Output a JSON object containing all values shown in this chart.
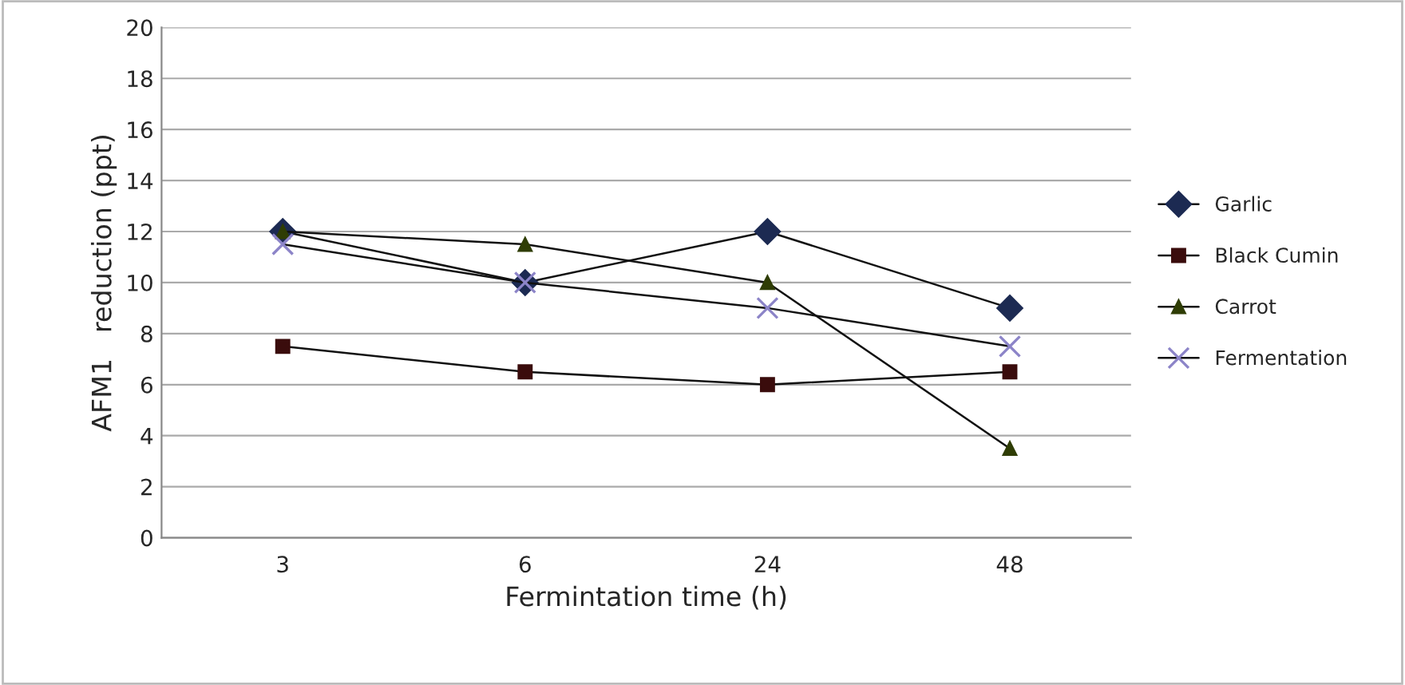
{
  "chart_data": {
    "type": "line",
    "xlabel": "Fermintation time (h)",
    "ylabel": "AFM1   reduction (ppt)",
    "categories": [
      "3",
      "6",
      "24",
      "48"
    ],
    "series": [
      {
        "name": "Garlic",
        "color": "#1c2a52",
        "marker": "diamond",
        "values": [
          12,
          10,
          12,
          9
        ]
      },
      {
        "name": "Black Cumin",
        "color": "#3a0c0c",
        "marker": "square",
        "values": [
          7.5,
          6.5,
          6,
          6.5
        ]
      },
      {
        "name": "Carrot",
        "color": "#2f3d05",
        "marker": "triangle",
        "values": [
          12,
          11.5,
          10,
          3.5
        ]
      },
      {
        "name": "Fermentation",
        "color": "#8c84c8",
        "marker": "cross",
        "values": [
          11.5,
          10,
          9,
          7.5
        ]
      }
    ],
    "ylim": [
      0,
      20
    ],
    "yticks": [
      0,
      2,
      4,
      6,
      8,
      10,
      12,
      14,
      16,
      18,
      20
    ],
    "grid": "y",
    "legend": "right",
    "line_style": "solid"
  }
}
